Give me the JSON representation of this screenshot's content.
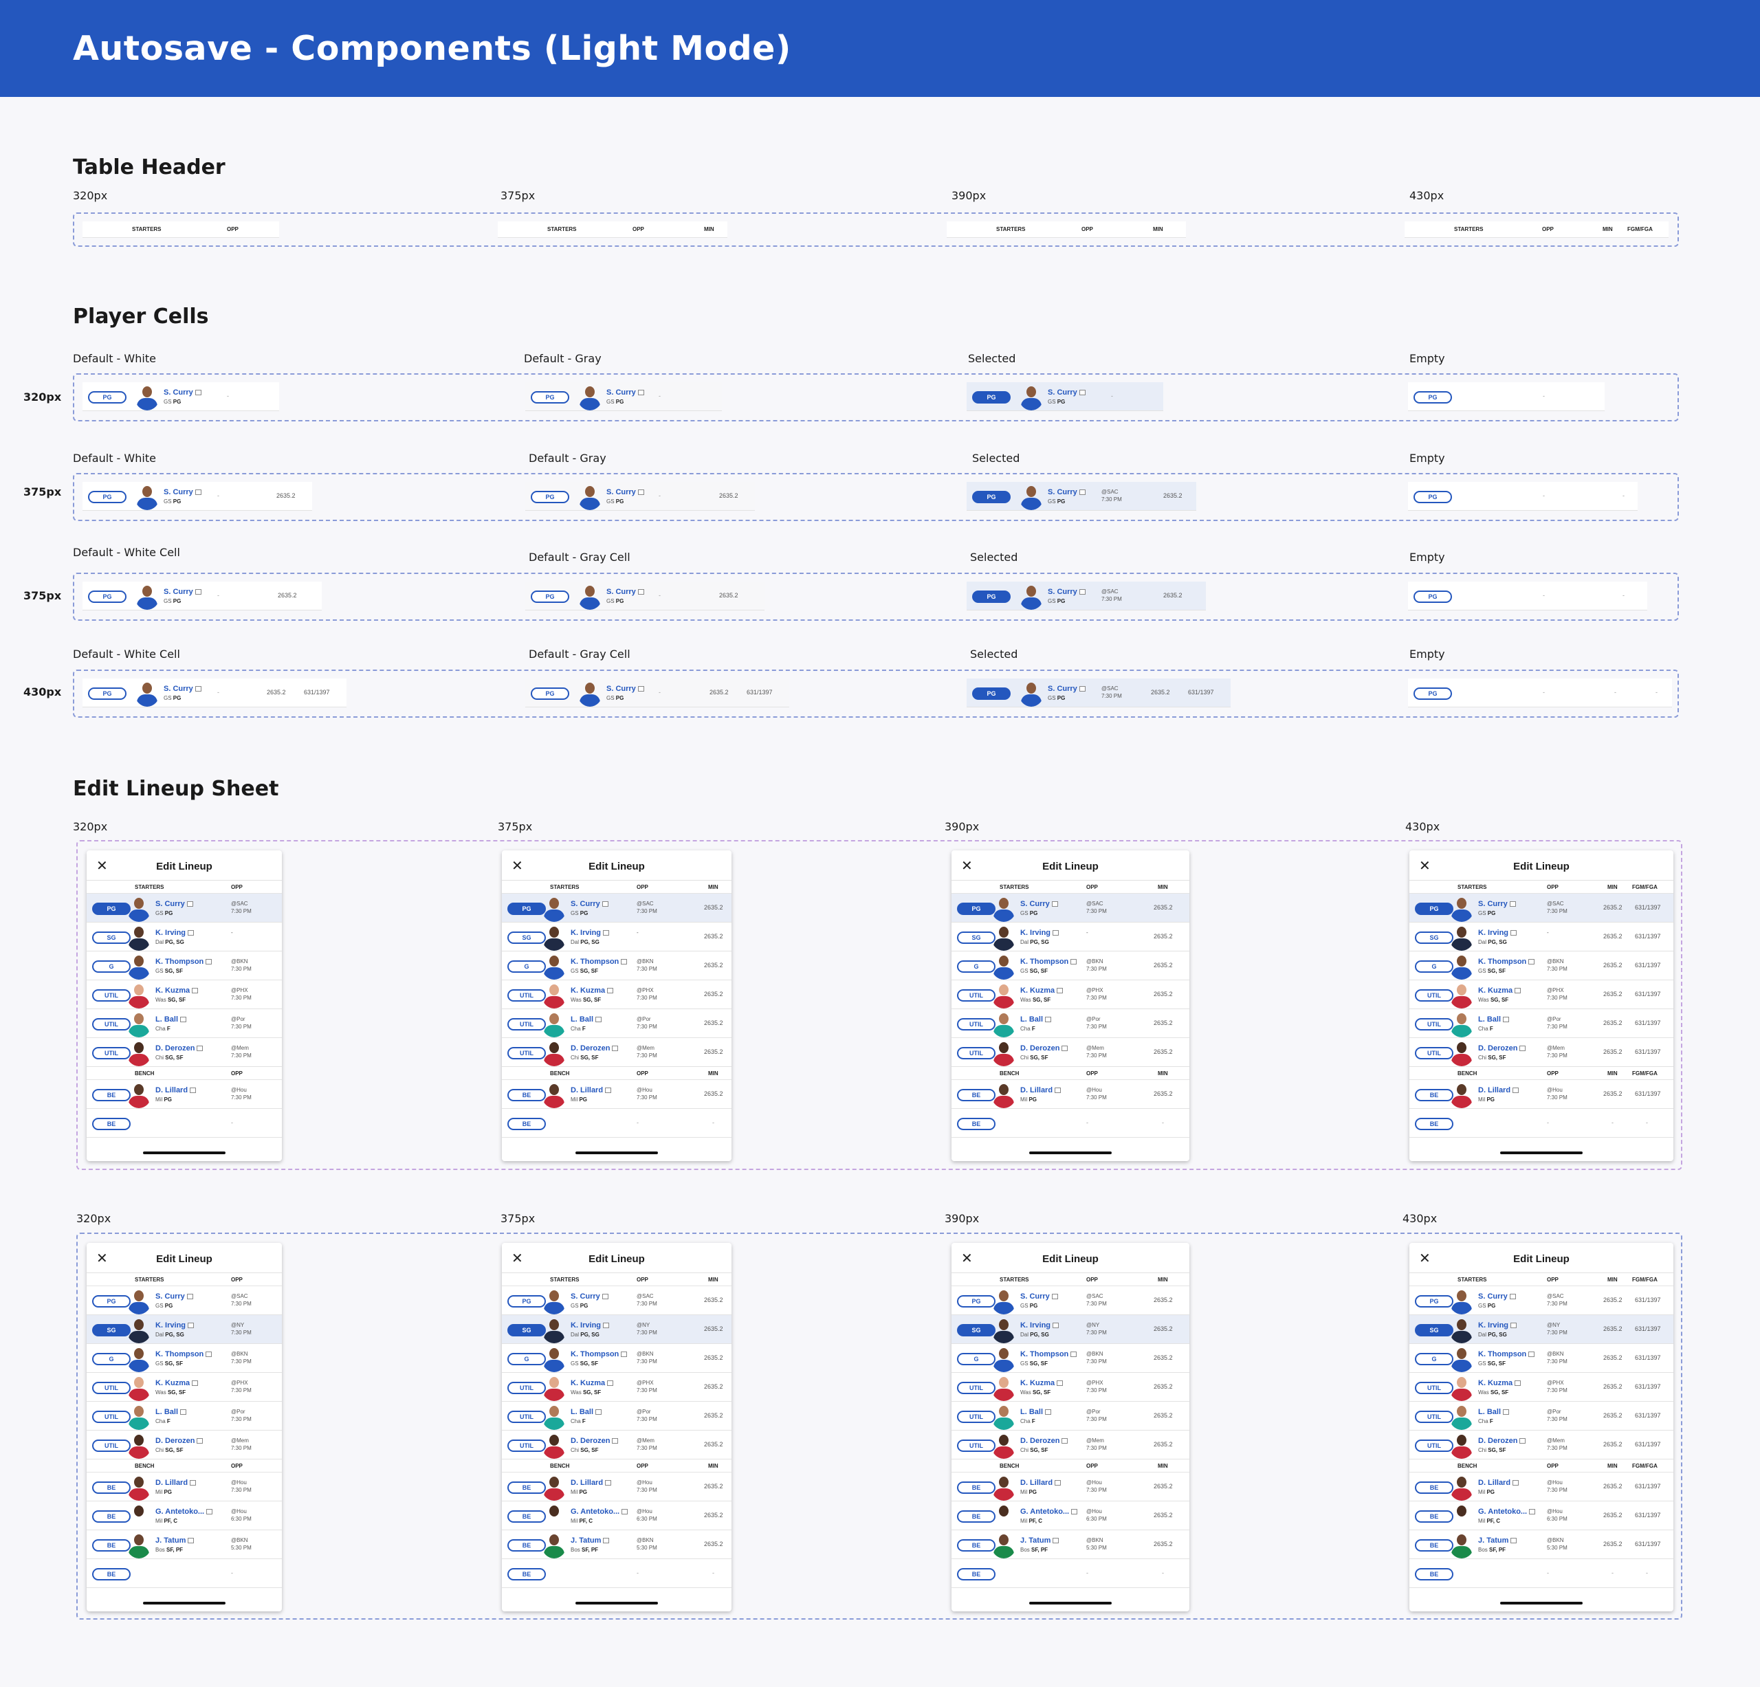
{
  "page_title": "Autosave - Components (Light Mode)",
  "sections": {
    "table_header": "Table Header",
    "player_cells": "Player Cells",
    "edit_lineup_sheet": "Edit Lineup Sheet"
  },
  "widths": [
    "320px",
    "375px",
    "390px",
    "430px"
  ],
  "header_cols": {
    "starters": "STARTERS",
    "bench": "BENCH",
    "opp": "OPP",
    "min": "MIN",
    "fgm": "FGM/FGA"
  },
  "cell_labels": {
    "default_white": "Default - White",
    "default_gray": "Default - Gray",
    "default_white_cell": "Default - White Cell",
    "default_gray_cell": "Default - Gray Cell",
    "selected": "Selected",
    "empty": "Empty"
  },
  "sample_player": {
    "pos": "PG",
    "name": "S. Curry",
    "team": "GS",
    "elig": "PG",
    "opp1": "@SAC",
    "opp2": "7:30 PM",
    "min": "2635.2",
    "fgm": "631/1397",
    "dash": "-"
  },
  "sheet": {
    "title": "Edit Lineup",
    "close": "✕"
  },
  "players": [
    {
      "pos": "PG",
      "name": "S. Curry",
      "team": "GS",
      "elig": "PG",
      "opp1": "@SAC",
      "opp2": "7:30 PM",
      "skin": "#8a5a3c",
      "jersey": "#2457be"
    },
    {
      "pos": "SG",
      "name": "K. Irving",
      "team": "Dal",
      "elig": "PG, SG",
      "opp1": "-",
      "opp2": "",
      "skin": "#5a3a28",
      "jersey": "#1f2a44"
    },
    {
      "pos": "G",
      "name": "K. Thompson",
      "team": "GS",
      "elig": "SG, SF",
      "opp1": "@BKN",
      "opp2": "7:30 PM",
      "skin": "#7a4e32",
      "jersey": "#2457be"
    },
    {
      "pos": "UTIL",
      "name": "K. Kuzma",
      "team": "Was",
      "elig": "SG, SF",
      "opp1": "@PHX",
      "opp2": "7:30 PM",
      "skin": "#e0a98a",
      "jersey": "#c8283a"
    },
    {
      "pos": "UTIL",
      "name": "L. Ball",
      "team": "Cha",
      "elig": "F",
      "opp1": "@Por",
      "opp2": "7:30 PM",
      "skin": "#b07a58",
      "jersey": "#1aa89a"
    },
    {
      "pos": "UTIL",
      "name": "D. Derozen",
      "team": "Chi",
      "elig": "SG, SF",
      "opp1": "@Mem",
      "opp2": "7:30 PM",
      "skin": "#4a2e20",
      "jersey": "#c8283a"
    }
  ],
  "players_b": [
    {
      "pos": "PG",
      "name": "S. Curry",
      "team": "GS",
      "elig": "PG",
      "opp1": "@SAC",
      "opp2": "7:30 PM",
      "skin": "#8a5a3c",
      "jersey": "#2457be"
    },
    {
      "pos": "SG",
      "name": "K. Irving",
      "team": "Dal",
      "elig": "PG, SG",
      "opp1": "@NY",
      "opp2": "7:30 PM",
      "skin": "#5a3a28",
      "jersey": "#1f2a44"
    },
    {
      "pos": "G",
      "name": "K. Thompson",
      "team": "GS",
      "elig": "SG, SF",
      "opp1": "@BKN",
      "opp2": "7:30 PM",
      "skin": "#7a4e32",
      "jersey": "#2457be"
    },
    {
      "pos": "UTIL",
      "name": "K. Kuzma",
      "team": "Was",
      "elig": "SG, SF",
      "opp1": "@PHX",
      "opp2": "7:30 PM",
      "skin": "#e0a98a",
      "jersey": "#c8283a"
    },
    {
      "pos": "UTIL",
      "name": "L. Ball",
      "team": "Cha",
      "elig": "F",
      "opp1": "@Por",
      "opp2": "7:30 PM",
      "skin": "#b07a58",
      "jersey": "#1aa89a"
    },
    {
      "pos": "UTIL",
      "name": "D. Derozen",
      "team": "Chi",
      "elig": "SG, SF",
      "opp1": "@Mem",
      "opp2": "7:30 PM",
      "skin": "#4a2e20",
      "jersey": "#c8283a"
    }
  ],
  "bench_a": [
    {
      "pos": "BE",
      "name": "D. Lillard",
      "team": "Mil",
      "elig": "PG",
      "opp1": "@Hou",
      "opp2": "7:30 PM",
      "skin": "#5a3a28",
      "jersey": "#c8283a"
    },
    {
      "pos": "BE",
      "empty": true
    }
  ],
  "bench_b": [
    {
      "pos": "BE",
      "name": "D. Lillard",
      "team": "Mil",
      "elig": "PG",
      "opp1": "@Hou",
      "opp2": "7:30 PM",
      "skin": "#5a3a28",
      "jersey": "#c8283a"
    },
    {
      "pos": "BE",
      "name": "G. Antetoko...",
      "team": "Mil",
      "elig": "PF, C",
      "opp1": "@Hou",
      "opp2": "6:30 PM",
      "skin": "#4a2e20",
      "jersey": "#ffffff"
    },
    {
      "pos": "BE",
      "name": "J. Tatum",
      "team": "Bos",
      "elig": "SF, PF",
      "opp1": "@BKN",
      "opp2": "5:30 PM",
      "skin": "#6a4430",
      "jersey": "#1a8a4a"
    },
    {
      "pos": "BE",
      "empty": true
    }
  ],
  "stats": {
    "min": "2635.2",
    "fgm": "631/1397",
    "dash": "-"
  },
  "colors": {
    "brand_blue": "#2457be",
    "background": "#f7f7fa",
    "selected_row": "#e8edf7",
    "dashed_blue": "#8a9bd8",
    "dashed_purple": "#c4a5e0"
  }
}
